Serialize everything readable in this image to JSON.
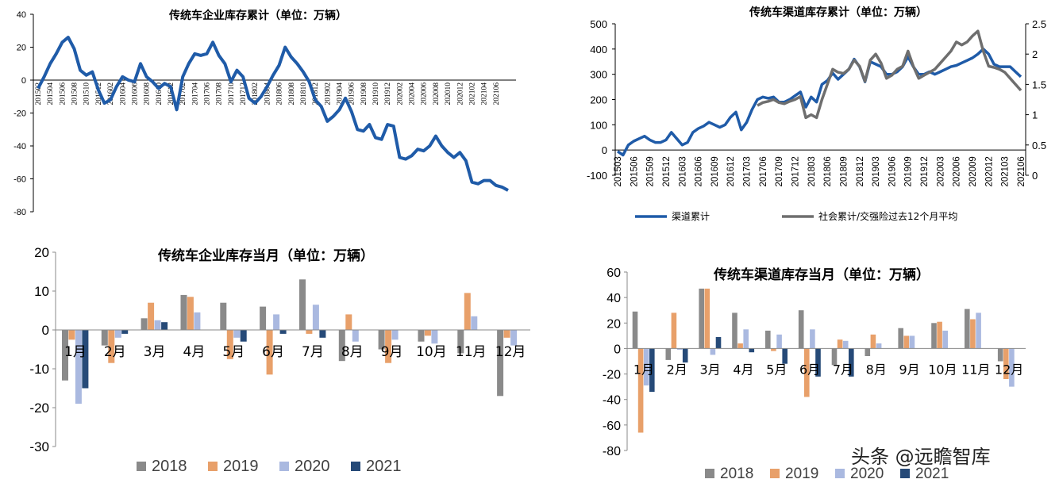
{
  "watermark": "头条 @远瞻智库",
  "chart_data": [
    {
      "id": "enterprise_cum",
      "type": "line",
      "title": "传统车企业库存累计（单位：万辆）",
      "ylim": [
        -80,
        40
      ],
      "yticks": [
        "40",
        "20",
        "0",
        "-20",
        "-40",
        "-60",
        "-80"
      ],
      "ytick_values": [
        40,
        20,
        0,
        -20,
        -40,
        -60,
        -80
      ],
      "xtick_labels": [
        "201502",
        "201504",
        "201506",
        "201508",
        "201510",
        "201512",
        "201602",
        "201604",
        "201606",
        "201608",
        "201610",
        "201612",
        "201702",
        "201704",
        "201706",
        "201708",
        "201710",
        "201712",
        "201802",
        "201804",
        "201806",
        "201808",
        "201810",
        "201812",
        "201902",
        "201904",
        "201906",
        "201908",
        "201910",
        "201912",
        "202002",
        "202004",
        "202006",
        "202008",
        "202010",
        "202012",
        "202102",
        "202104",
        "202106"
      ],
      "color": "#1f5ba8",
      "series": [
        {
          "values": [
            -5,
            2,
            10,
            16,
            23,
            26,
            19,
            6,
            3,
            5,
            -6,
            -14,
            -12,
            -4,
            2,
            0,
            -1,
            10,
            2,
            -1,
            -5,
            -2,
            -4,
            -18,
            2,
            10,
            16,
            15,
            16,
            23,
            15,
            10,
            -1,
            6,
            2,
            -11,
            -14,
            -10,
            -4,
            3,
            9,
            20,
            14,
            10,
            5,
            -1,
            -12,
            -16,
            -25,
            -22,
            -18,
            -11,
            -19,
            -30,
            -31,
            -27,
            -35,
            -36,
            -27,
            -28,
            -47,
            -48,
            -46,
            -42,
            -43,
            -40,
            -34,
            -40,
            -44,
            -47,
            -44,
            -49,
            -62,
            -63,
            -61,
            -61,
            -64,
            -65,
            -67
          ]
        }
      ]
    },
    {
      "id": "channel_cum",
      "type": "line",
      "title": "传统车渠道库存累计（单位：万辆）",
      "ylim": [
        -100,
        500
      ],
      "y2lim": [
        0,
        2.5
      ],
      "yticks": [
        "500",
        "400",
        "300",
        "200",
        "100",
        "0",
        "-100"
      ],
      "ytick_values": [
        500,
        400,
        300,
        200,
        100,
        0,
        -100
      ],
      "y2ticks": [
        "2.5",
        "2",
        "1.5",
        "1",
        "0.5",
        "0"
      ],
      "y2tick_values": [
        2.5,
        2,
        1.5,
        1,
        0.5,
        0
      ],
      "xtick_labels": [
        "201503",
        "201506",
        "201509",
        "201512",
        "201603",
        "201606",
        "201609",
        "201612",
        "201703",
        "201706",
        "201709",
        "201712",
        "201803",
        "201806",
        "201809",
        "201812",
        "201903",
        "201906",
        "201909",
        "201912",
        "202003",
        "202006",
        "202009",
        "202012",
        "202103",
        "202106"
      ],
      "series": [
        {
          "name": "渠道累计",
          "color": "#1f5ba8",
          "axis": "left",
          "values": [
            -5,
            -20,
            20,
            35,
            45,
            55,
            40,
            30,
            30,
            40,
            70,
            45,
            20,
            30,
            70,
            85,
            95,
            110,
            100,
            90,
            100,
            130,
            150,
            80,
            110,
            160,
            200,
            210,
            205,
            210,
            190,
            190,
            200,
            215,
            230,
            170,
            210,
            190,
            260,
            275,
            305,
            280,
            300,
            320,
            360,
            330,
            270,
            350,
            340,
            330,
            300,
            300,
            310,
            330,
            370,
            330,
            300,
            300,
            310,
            300,
            310,
            320,
            330,
            335,
            345,
            355,
            365,
            380,
            400,
            380,
            340,
            330,
            330,
            330,
            310,
            290
          ]
        },
        {
          "name": "社会累计/交强险过去12个月平均",
          "color": "#6e6e6e",
          "axis": "right",
          "values": [
            null,
            null,
            null,
            null,
            null,
            null,
            null,
            null,
            null,
            null,
            null,
            null,
            null,
            null,
            null,
            null,
            null,
            null,
            null,
            null,
            null,
            null,
            null,
            null,
            null,
            null,
            1.15,
            1.2,
            1.22,
            1.25,
            1.2,
            1.18,
            1.22,
            1.25,
            1.3,
            0.95,
            1.0,
            0.95,
            1.25,
            1.5,
            1.75,
            1.7,
            1.68,
            1.75,
            1.9,
            1.8,
            1.55,
            1.9,
            2.0,
            1.85,
            1.6,
            1.65,
            1.75,
            1.8,
            2.05,
            1.8,
            1.6,
            1.65,
            1.7,
            1.75,
            1.85,
            1.95,
            2.05,
            2.2,
            2.15,
            2.2,
            2.3,
            2.38,
            2.05,
            1.8,
            1.78,
            1.75,
            1.7,
            1.6,
            1.5,
            1.4
          ]
        }
      ]
    },
    {
      "id": "enterprise_month",
      "type": "bar",
      "title": "传统车企业库存当月（单位：万辆）",
      "ylim": [
        -30,
        20
      ],
      "yticks": [
        "20",
        "10",
        "0",
        "-10",
        "-20",
        "-30"
      ],
      "ytick_values": [
        20,
        10,
        0,
        -10,
        -20,
        -30
      ],
      "categories": [
        "1月",
        "2月",
        "3月",
        "4月",
        "5月",
        "6月",
        "7月",
        "8月",
        "9月",
        "10月",
        "11月",
        "12月"
      ],
      "series": [
        {
          "name": "2018",
          "color": "#8a8a8a",
          "values": [
            -13,
            -4,
            3,
            9,
            7,
            6,
            13,
            -8,
            -5,
            -3,
            -6,
            -17
          ]
        },
        {
          "name": "2019",
          "color": "#e8a06a",
          "values": [
            -2.5,
            -8.5,
            7,
            8.5,
            -7.5,
            -11.5,
            -1,
            4,
            -8.5,
            -1.5,
            9.5,
            -2
          ]
        },
        {
          "name": "2020",
          "color": "#aab9e0",
          "values": [
            -19,
            -2,
            2.5,
            4.5,
            -2,
            4,
            6.5,
            -3,
            -2.5,
            -3.5,
            3.5,
            -4
          ]
        },
        {
          "name": "2021",
          "color": "#264a78",
          "values": [
            -15,
            -1,
            2,
            null,
            -3,
            -1,
            -2,
            null,
            null,
            null,
            null,
            null
          ]
        }
      ]
    },
    {
      "id": "channel_month",
      "type": "bar",
      "title": "传统车渠道库存当月（单位：万辆）",
      "ylim": [
        -80,
        60
      ],
      "yticks": [
        "60",
        "40",
        "20",
        "0",
        "-20",
        "-40",
        "-60",
        "-80"
      ],
      "ytick_values": [
        60,
        40,
        20,
        0,
        -20,
        -40,
        -60,
        -80
      ],
      "categories": [
        "1月",
        "2月",
        "3月",
        "4月",
        "5月",
        "6月",
        "7月",
        "8月",
        "9月",
        "10月",
        "11月",
        "12月"
      ],
      "series": [
        {
          "name": "2018",
          "color": "#8a8a8a",
          "values": [
            29,
            -9,
            47,
            28,
            14,
            30,
            -13,
            -6,
            16,
            20,
            31,
            -10
          ]
        },
        {
          "name": "2019",
          "color": "#e8a06a",
          "values": [
            -66,
            28,
            47,
            4,
            -2,
            -38,
            7,
            11,
            10,
            21,
            23,
            -24
          ]
        },
        {
          "name": "2020",
          "color": "#aab9e0",
          "values": [
            -29,
            -1,
            -5,
            15,
            11,
            15,
            6,
            4,
            10,
            14,
            28,
            -30
          ]
        },
        {
          "name": "2021",
          "color": "#264a78",
          "values": [
            -34,
            -11,
            9,
            -3,
            -12,
            -22,
            -22,
            null,
            null,
            null,
            null,
            null
          ]
        }
      ]
    }
  ]
}
